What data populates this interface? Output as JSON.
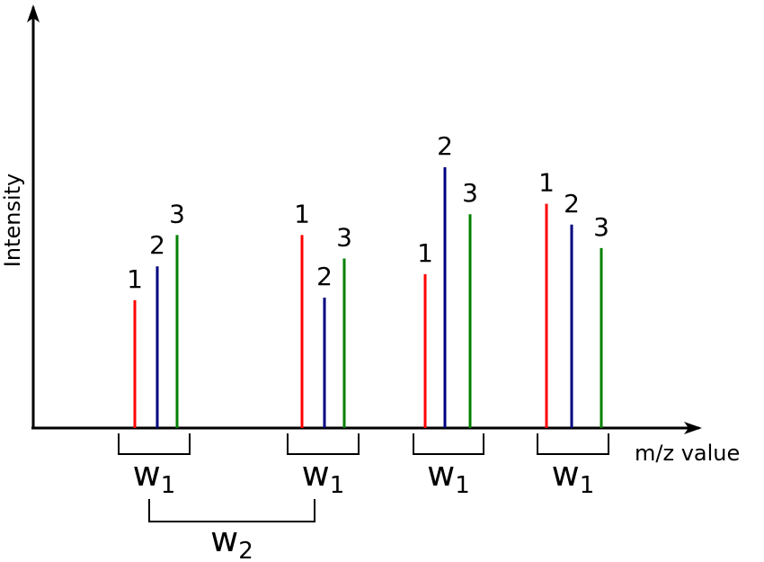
{
  "axes": {
    "y_label": "Intensity",
    "x_label": "m/z value"
  },
  "colors": {
    "axis": "#000000",
    "peak_1": "#ff0000",
    "peak_2": "#000080",
    "peak_3": "#008000"
  },
  "groups": [
    {
      "peaks": [
        {
          "label": "1",
          "color": "#ff0000",
          "intensity": 0.49
        },
        {
          "label": "2",
          "color": "#000080",
          "intensity": 0.62
        },
        {
          "label": "3",
          "color": "#008000",
          "intensity": 0.74
        }
      ],
      "window": {
        "main": "w",
        "sub": "1"
      }
    },
    {
      "peaks": [
        {
          "label": "1",
          "color": "#ff0000",
          "intensity": 0.74
        },
        {
          "label": "2",
          "color": "#000080",
          "intensity": 0.5
        },
        {
          "label": "3",
          "color": "#008000",
          "intensity": 0.65
        }
      ],
      "window": {
        "main": "w",
        "sub": "1"
      }
    },
    {
      "peaks": [
        {
          "label": "1",
          "color": "#ff0000",
          "intensity": 0.59
        },
        {
          "label": "2",
          "color": "#000080",
          "intensity": 1.0
        },
        {
          "label": "3",
          "color": "#008000",
          "intensity": 0.82
        }
      ],
      "window": {
        "main": "w",
        "sub": "1"
      }
    },
    {
      "peaks": [
        {
          "label": "1",
          "color": "#ff0000",
          "intensity": 0.86
        },
        {
          "label": "2",
          "color": "#000080",
          "intensity": 0.78
        },
        {
          "label": "3",
          "color": "#008000",
          "intensity": 0.69
        }
      ],
      "window": {
        "main": "w",
        "sub": "1"
      }
    }
  ],
  "distance": {
    "main": "w",
    "sub": "2",
    "from_group": 0,
    "to_group": 1
  }
}
